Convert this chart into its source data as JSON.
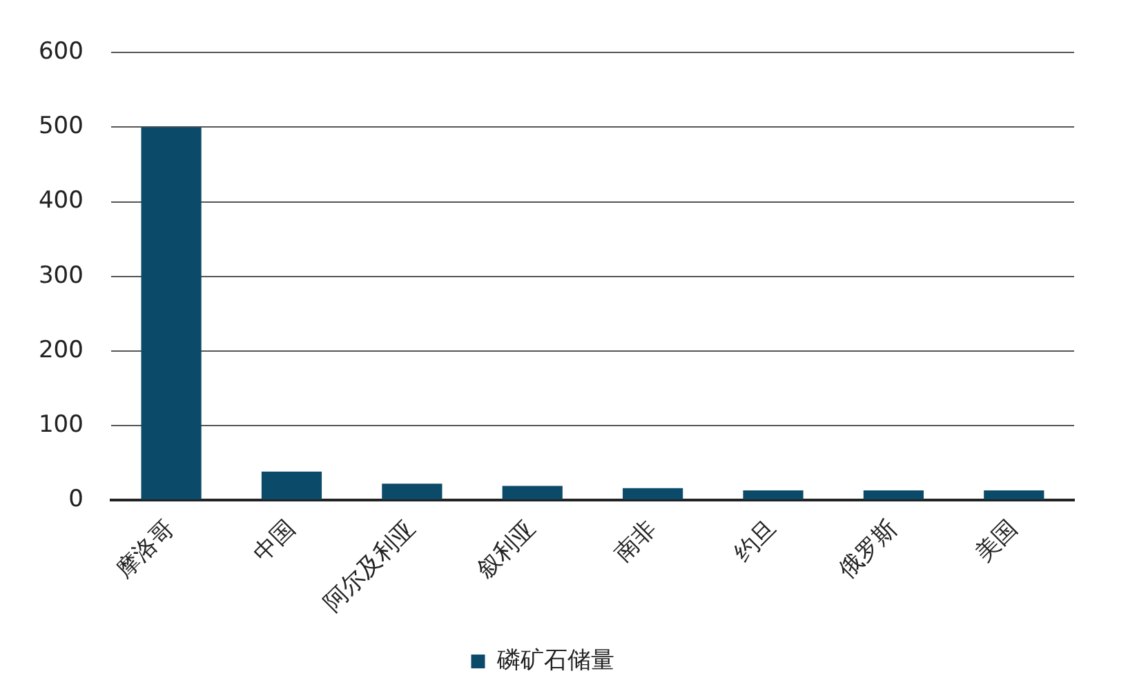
{
  "chart_data": {
    "type": "bar",
    "categories": [
      "摩洛哥",
      "中国",
      "阿尔及利亚",
      "叙利亚",
      "南非",
      "约旦",
      "俄罗斯",
      "美国"
    ],
    "series": [
      {
        "name": "磷矿石储量",
        "color": "#0b4a68",
        "values": [
          500,
          38,
          22,
          19,
          16,
          13,
          13,
          13
        ]
      }
    ],
    "ylim": [
      0,
      600
    ],
    "yticks": [
      0,
      100,
      200,
      300,
      400,
      500,
      600
    ],
    "grid": "y",
    "legend": "bottom"
  }
}
